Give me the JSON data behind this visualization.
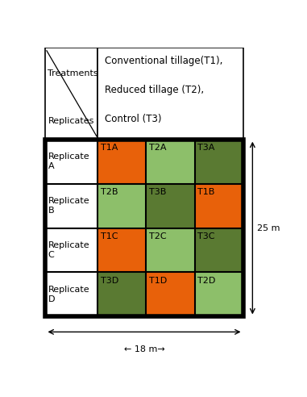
{
  "title_text": "Conventional tillage(T1),\n\nReduced tillage (T2),\n\nControl (T3)",
  "treatments_label": "Treatments",
  "replicates_label": "Replicates",
  "grid": [
    [
      "T1A",
      "T2A",
      "T3A"
    ],
    [
      "T2B",
      "T3B",
      "T1B"
    ],
    [
      "T1C",
      "T2C",
      "T3C"
    ],
    [
      "T3D",
      "T1D",
      "T2D"
    ]
  ],
  "row_labels": [
    "Replicate\nA",
    "Replicate\nB",
    "Replicate\nC",
    "Replicate\nD"
  ],
  "colors": {
    "T1": "#E8610A",
    "T2": "#8DBF6A",
    "T3": "#5A7A32"
  },
  "width_label": "← 18 m→",
  "height_label": "25 m",
  "cell_fontsize": 8,
  "label_fontsize": 8,
  "header_fontsize": 8.5
}
